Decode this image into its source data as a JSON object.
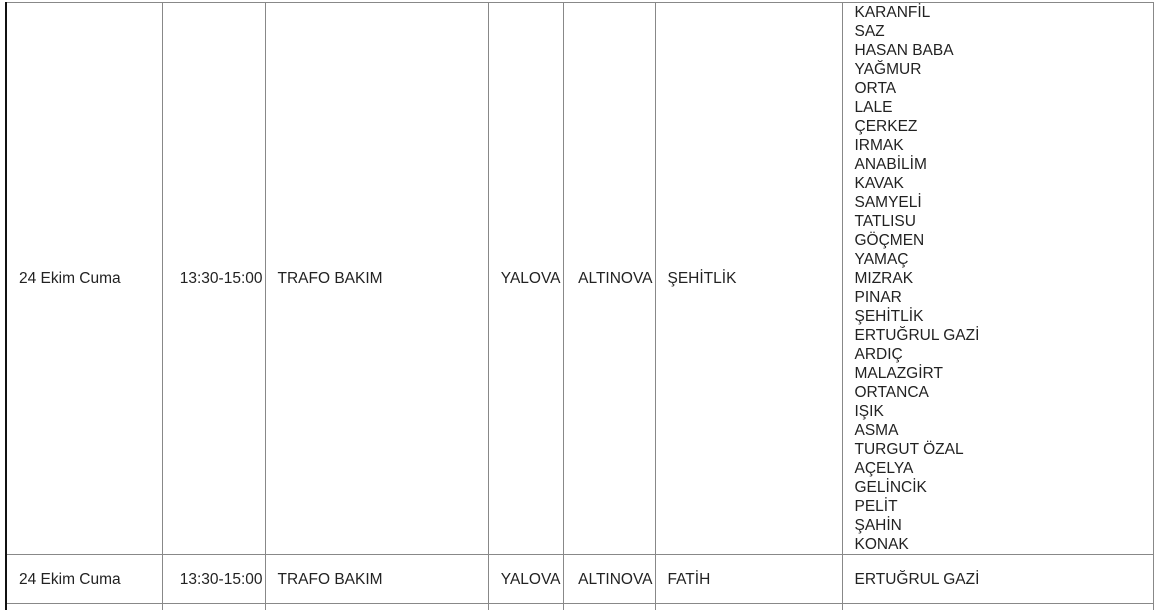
{
  "rows": [
    {
      "date": "24 Ekim Cuma",
      "time": "13:30-15:00",
      "reason": "TRAFO BAKIM",
      "city": "YALOVA",
      "district": "ALTINOVA",
      "neighborhood": "ŞEHİTLİK",
      "streets": [
        "KARANFİL",
        "SAZ",
        "HASAN BABA",
        "YAĞMUR",
        "ORTA",
        "LALE",
        "ÇERKEZ",
        "IRMAK",
        "ANABİLİM",
        "KAVAK",
        "SAMYELİ",
        "TATLISU",
        "GÖÇMEN",
        "YAMAÇ",
        "MIZRAK",
        "PINAR",
        "ŞEHİTLİK",
        "ERTUĞRUL GAZİ",
        "ARDIÇ",
        "MALAZGİRT",
        "ORTANCA",
        "IŞIK",
        "ASMA",
        "TURGUT ÖZAL",
        "AÇELYA",
        "GELİNCİK",
        "PELİT",
        "ŞAHİN",
        "KONAK"
      ]
    },
    {
      "date": "24 Ekim Cuma",
      "time": "13:30-15:00",
      "reason": "TRAFO BAKIM",
      "city": "YALOVA",
      "district": "ALTINOVA",
      "neighborhood": "FATİH",
      "streets": [
        "ERTUĞRUL GAZİ"
      ]
    }
  ]
}
